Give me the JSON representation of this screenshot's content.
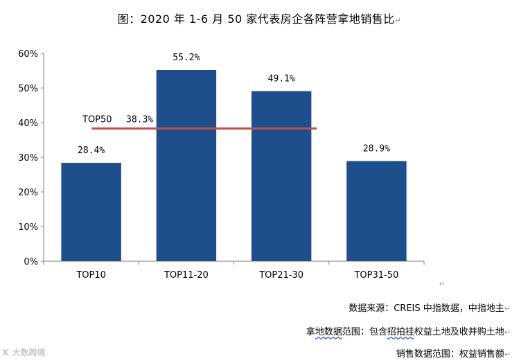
{
  "title": "图：2020 年 1-6 月 50 家代表房企各阵营拿地销售比",
  "paragraph_mark": "↵",
  "notes": {
    "source": "数据来源：CREIS 中指数据，中指地主",
    "scope_land_prefix": "拿",
    "scope_land_ul1": "地数据",
    "scope_land_mid": "范围：包含",
    "scope_land_ul2": "招拍挂",
    "scope_land_suffix": "权益土地及收并购土地",
    "scope_sales": "销售数据范围：权益销售额"
  },
  "watermark": "K 大数跨境",
  "chart_data": {
    "type": "bar",
    "title": "",
    "xlabel": "",
    "ylabel": "",
    "categories": [
      "TOP10",
      "TOP11-20",
      "TOP21-30",
      "TOP31-50"
    ],
    "values": [
      28.4,
      55.2,
      49.1,
      28.9
    ],
    "value_labels": [
      "28.4%",
      "55.2%",
      "49.1%",
      "28.9%"
    ],
    "ylim": [
      0,
      60
    ],
    "yticks": [
      "0%",
      "10%",
      "20%",
      "30%",
      "40%",
      "50%",
      "60%"
    ],
    "bar_color": "#1f4e8c",
    "reference_line": {
      "name": "TOP50",
      "value": 38.3,
      "label": "38.3%",
      "color": "#c0504d"
    }
  }
}
